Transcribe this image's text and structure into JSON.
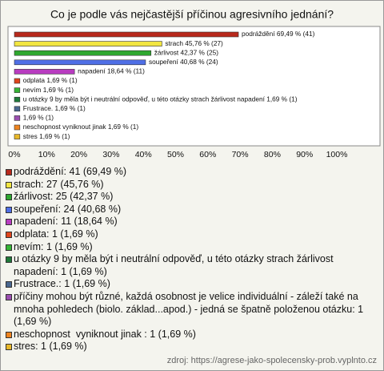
{
  "chart_data": {
    "type": "hbar",
    "title": "Co je podle vás nejčastější příčinou agresivního jednání?",
    "values": [
      69.49,
      45.76,
      42.37,
      40.68,
      18.64,
      1.69,
      1.69,
      1.69,
      1.69,
      1.69,
      1.69,
      1.69
    ],
    "value_labels": [
      "podráždění 69,49 % (41)",
      "strach 45,76 % (27)",
      "žárlivost 42,37 % (25)",
      "soupeření 40,68 % (24)",
      "napadení 18,64 % (11)",
      "odplata 1,69 % (1)",
      "nevím 1,69 % (1)",
      "u otázky 9 by měla být i neutrální odpověď, u této otázky strach žárlivost napadení 1,69 % (1)",
      "Frustrace. 1,69 % (1)",
      "1,69 % (1)",
      "neschopnost  vyniknout jinak  1,69 % (1)",
      "stres 1,69 % (1)"
    ],
    "colors": [
      "#b8291c",
      "#f2e641",
      "#2fa82f",
      "#4f6fe6",
      "#b83cc0",
      "#e0451c",
      "#36b536",
      "#1f7a3a",
      "#4a6890",
      "#9b4fb0",
      "#ef8420",
      "#e8b82a"
    ],
    "legend": [
      "podráždění: 41 (69,49 %)",
      "strach: 27 (45,76 %)",
      "žárlivost: 25 (42,37 %)",
      "soupeření: 24 (40,68 %)",
      "napadení: 11 (18,64 %)",
      "odplata: 1 (1,69 %)",
      "nevím: 1 (1,69 %)",
      "u otázky 9 by měla být i neutrální odpověď, u této otázky strach žárlivost napadení: 1 (1,69 %)",
      "Frustrace.: 1 (1,69 %)",
      "příčiny mohou být různé, každá osobnost je velice individuální - záleží také na mnoha pohledech (biolo. základ...apod.) - jedná se špatně položenou otázku: 1 (1,69 %)",
      "neschopnost  vyniknout jinak : 1 (1,69 %)",
      "stres: 1 (1,69 %)"
    ],
    "xlim": [
      0,
      100
    ],
    "xticks": [
      {
        "value": 0,
        "label": "0%"
      },
      {
        "value": 10,
        "label": "10%"
      },
      {
        "value": 20,
        "label": "20%"
      },
      {
        "value": 30,
        "label": "30%"
      },
      {
        "value": 40,
        "label": "40%"
      },
      {
        "value": 50,
        "label": "50%"
      },
      {
        "value": 60,
        "label": "60%"
      },
      {
        "value": 70,
        "label": "70%"
      },
      {
        "value": 80,
        "label": "80%"
      },
      {
        "value": 90,
        "label": "90%"
      },
      {
        "value": 100,
        "label": "100%"
      }
    ],
    "source": "zdroj: https://agrese-jako-spolecensky-prob.vyplnto.cz"
  }
}
